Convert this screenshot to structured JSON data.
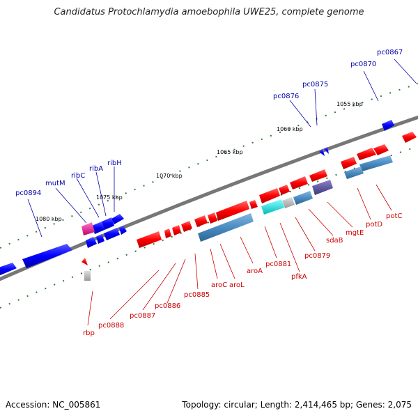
{
  "title": "Candidatus Protochlamydia amoebophila UWE25, complete genome",
  "footer": {
    "accession": "Accession: NC_005861",
    "topology": "Topology: circular; Length: 2,414,465 bp; Genes: 2,075"
  },
  "colors": {
    "forward_gene": "#ff0000",
    "reverse_gene": "#0000ff",
    "forward_label": "#cc0000",
    "reverse_label": "#0000aa",
    "rna_gene": "#3d83b8",
    "backbone": "#777777",
    "ruler": "#2e7d32"
  },
  "scale_labels": [
    "1055 kbp",
    "1060 kbp",
    "1065 kbp",
    "1070 kbp",
    "1075 kbp",
    "1080 kbp"
  ],
  "top_labels": [
    "pc0867",
    "pc0870",
    "pc0875",
    "pc0876",
    "ribH",
    "ribA",
    "ribC",
    "mutM",
    "pc0894"
  ],
  "bottom_labels": [
    "potC",
    "potD",
    "mgtE",
    "sdaB",
    "pc0879",
    "pfkA",
    "pc0881",
    "aroA",
    "aroL",
    "aroC",
    "pc0885",
    "pc0886",
    "pc0887",
    "pc0888",
    "rbp"
  ]
}
